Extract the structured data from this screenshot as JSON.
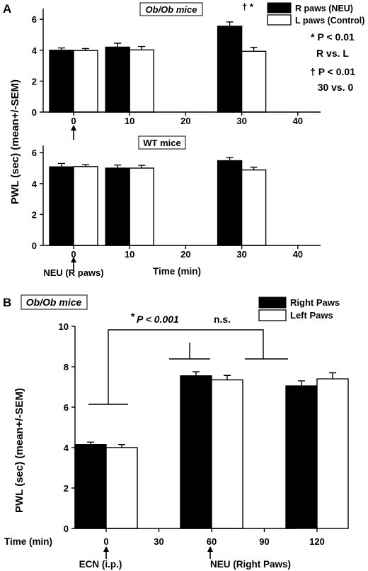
{
  "chart_data": [
    {
      "type": "bar",
      "panel": "A",
      "title": "Ob/Ob mice",
      "x": [
        0,
        10,
        30
      ],
      "xlim": [
        -10,
        40
      ],
      "xticks": [
        "0",
        "10",
        "20",
        "30",
        "40"
      ],
      "ylim": [
        0,
        6.6
      ],
      "yticks": [
        "0",
        "2",
        "4",
        "6"
      ],
      "series": [
        {
          "name": "R paws (NEU)",
          "values": [
            4.0,
            4.2,
            5.55
          ],
          "errors": [
            0.15,
            0.25,
            0.28
          ],
          "color": "#000000"
        },
        {
          "name": "L paws (Control)",
          "values": [
            3.98,
            4.02,
            3.93
          ],
          "errors": [
            0.13,
            0.22,
            0.25
          ],
          "color": "#ffffff"
        }
      ],
      "annotations": {
        "significance_marks": "† *",
        "star_line": "* P < 0.01",
        "star_comparison": "R vs. L",
        "dagger_line": "† P < 0.01",
        "dagger_comparison": "30 vs. 0"
      }
    },
    {
      "type": "bar",
      "panel": "A",
      "title": "WT mice",
      "x": [
        0,
        10,
        30
      ],
      "xlim": [
        -10,
        40
      ],
      "xticks": [
        "0",
        "10",
        "20",
        "30",
        "40"
      ],
      "xlabel": "Time (min)",
      "ylim": [
        0,
        6.6
      ],
      "yticks": [
        "0",
        "2",
        "4",
        "6"
      ],
      "series": [
        {
          "values": [
            5.08,
            5.0,
            5.48
          ],
          "errors": [
            0.22,
            0.2,
            0.2
          ],
          "color": "#000000"
        },
        {
          "values": [
            5.1,
            5.0,
            4.88
          ],
          "errors": [
            0.12,
            0.18,
            0.18
          ],
          "color": "#ffffff"
        }
      ],
      "annotations": {
        "arrow_label": "NEU (R paws)"
      }
    },
    {
      "type": "bar",
      "panel": "B",
      "title": "Ob/Ob mice",
      "x": [
        0,
        60,
        120
      ],
      "xticks": [
        "0",
        "30",
        "60",
        "90",
        "120"
      ],
      "xlabel": "Time (min)",
      "ylim": [
        0,
        10
      ],
      "yticks": [
        "0",
        "2",
        "4",
        "6",
        "8",
        "10"
      ],
      "series": [
        {
          "name": "Right Paws",
          "values": [
            4.15,
            7.55,
            7.05
          ],
          "errors": [
            0.12,
            0.2,
            0.25
          ],
          "color": "#000000"
        },
        {
          "name": "Left Paws",
          "values": [
            4.0,
            7.35,
            7.4
          ],
          "errors": [
            0.15,
            0.22,
            0.3
          ],
          "color": "#ffffff"
        }
      ],
      "annotations": {
        "significance_star": "*",
        "significance_p": "P < 0.001",
        "ns": "n.s.",
        "arrow_label_1": "ECN (i.p.)",
        "arrow_label_2": "NEU (Right Paws)"
      }
    }
  ],
  "figure": {
    "panel_a_letter": "A",
    "panel_b_letter": "B",
    "ylabel_a": "PWL (sec) (mean+/-SEM)",
    "ylabel_b": "PWL (sec) (mean+/-SEM)"
  }
}
